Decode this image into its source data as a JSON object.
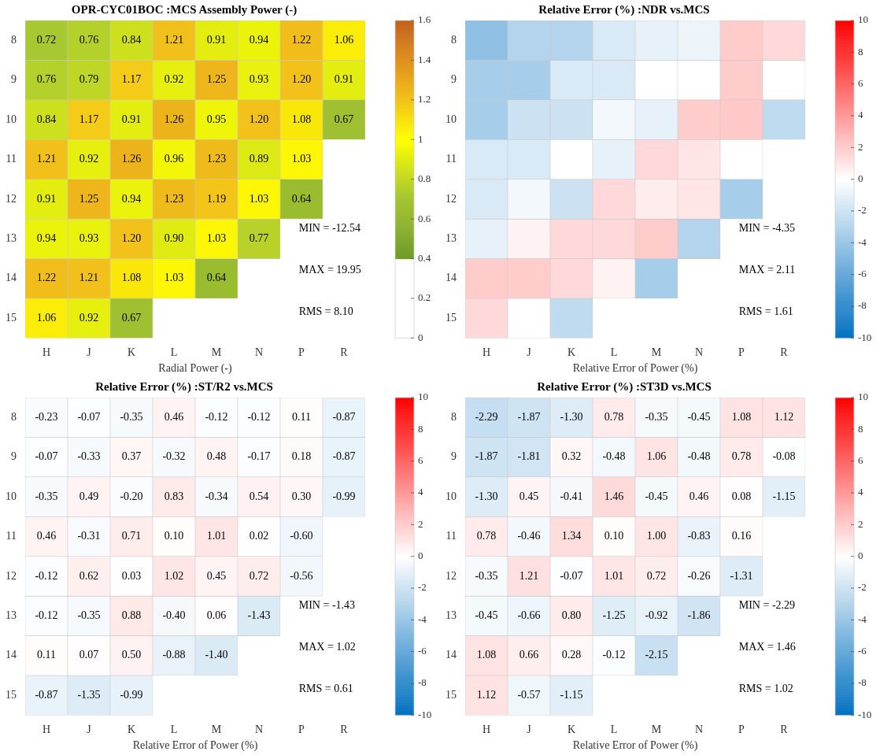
{
  "chart_data": [
    {
      "type": "heatmap",
      "title": "OPR-CYC01BOC :MCS Assembly Power (-)",
      "xlabel": "Radial Power (-)",
      "categories": [
        "H",
        "J",
        "K",
        "L",
        "M",
        "N",
        "P",
        "R"
      ],
      "y_categories": [
        "8",
        "9",
        "10",
        "11",
        "12",
        "13",
        "14",
        "15"
      ],
      "cells": [
        [
          0.72,
          0.76,
          0.84,
          1.21,
          0.91,
          0.94,
          1.22,
          1.06
        ],
        [
          0.76,
          0.79,
          1.17,
          0.92,
          1.25,
          0.93,
          1.2,
          0.91
        ],
        [
          0.84,
          1.17,
          0.91,
          1.26,
          0.95,
          1.2,
          1.08,
          0.67
        ],
        [
          1.21,
          0.92,
          1.26,
          0.96,
          1.23,
          0.89,
          1.03,
          null
        ],
        [
          0.91,
          1.25,
          0.94,
          1.23,
          1.19,
          1.03,
          0.64,
          null
        ],
        [
          0.94,
          0.93,
          1.2,
          0.9,
          1.03,
          0.77,
          null,
          null
        ],
        [
          1.22,
          1.21,
          1.08,
          1.03,
          0.64,
          null,
          null,
          null
        ],
        [
          1.06,
          0.92,
          0.67,
          null,
          null,
          null,
          null,
          null
        ]
      ],
      "cell_labels": [
        [
          "0.72",
          "0.76",
          "0.84",
          "1.21",
          "0.91",
          "0.94",
          "1.22",
          "1.06"
        ],
        [
          "0.76",
          "0.79",
          "1.17",
          "0.92",
          "1.25",
          "0.93",
          "1.20",
          "0.91"
        ],
        [
          "0.84",
          "1.17",
          "0.91",
          "1.26",
          "0.95",
          "1.20",
          "1.08",
          "0.67"
        ],
        [
          "1.21",
          "0.92",
          "1.26",
          "0.96",
          "1.23",
          "0.89",
          "1.03",
          null
        ],
        [
          "0.91",
          "1.25",
          "0.94",
          "1.23",
          "1.19",
          "1.03",
          "0.64",
          null
        ],
        [
          "0.94",
          "0.93",
          "1.20",
          "0.90",
          "1.03",
          "0.77",
          null,
          null
        ],
        [
          "1.22",
          "1.21",
          "1.08",
          "1.03",
          "0.64",
          null,
          null,
          null
        ],
        [
          "1.06",
          "0.92",
          "0.67",
          null,
          null,
          null,
          null,
          null
        ]
      ],
      "clim": [
        0,
        1.6
      ],
      "cticks": [
        0,
        0.2,
        0.4,
        0.6,
        0.8,
        1,
        1.2,
        1.4,
        1.6
      ],
      "annotations": [
        "MIN = -12.54",
        "MAX = 19.95",
        "RMS = 8.10"
      ]
    },
    {
      "type": "heatmap",
      "title": "Relative Error (%) :NDR vs.MCS",
      "xlabel": "Relative Error of Power (%)",
      "categories": [
        "H",
        "J",
        "K",
        "L",
        "M",
        "N",
        "P",
        "R"
      ],
      "y_categories": [
        "8",
        "9",
        "10",
        "11",
        "12",
        "13",
        "14",
        "15"
      ],
      "cells": [
        [
          -4.35,
          -3,
          -3,
          -1.5,
          -1,
          -0.7,
          2,
          1.5
        ],
        [
          -3.5,
          -3.5,
          -1.5,
          -1.5,
          0,
          0,
          2,
          0
        ],
        [
          -3.5,
          -2,
          -2,
          -0.5,
          -1,
          2,
          2.11,
          -2.5
        ],
        [
          -1.5,
          -1.5,
          0,
          -1,
          1.5,
          1,
          0,
          null
        ],
        [
          -1.5,
          -0.5,
          -2,
          1.5,
          0.7,
          1,
          -3.5,
          null
        ],
        [
          -1,
          0.5,
          1.5,
          1.5,
          2,
          -3,
          null,
          null
        ],
        [
          2,
          2,
          1.5,
          0.5,
          -3.5,
          null,
          null,
          null
        ],
        [
          1.5,
          0,
          -2.5,
          null,
          null,
          null,
          null,
          null
        ]
      ],
      "clim": [
        -10,
        10
      ],
      "cticks": [
        -10,
        -8,
        -6,
        -4,
        -2,
        0,
        2,
        4,
        6,
        8,
        10
      ],
      "annotations": [
        "MIN = -4.35",
        "MAX = 2.11",
        "RMS = 1.61"
      ]
    },
    {
      "type": "heatmap",
      "title": "Relative Error (%) :ST/R2 vs.MCS",
      "xlabel": "Relative Error of Power (%)",
      "categories": [
        "H",
        "J",
        "K",
        "L",
        "M",
        "N",
        "P",
        "R"
      ],
      "y_categories": [
        "8",
        "9",
        "10",
        "11",
        "12",
        "13",
        "14",
        "15"
      ],
      "cells": [
        [
          -0.23,
          -0.07,
          -0.35,
          0.46,
          -0.12,
          -0.12,
          0.11,
          -0.87
        ],
        [
          -0.07,
          -0.33,
          0.37,
          -0.32,
          0.48,
          -0.17,
          0.18,
          -0.87
        ],
        [
          -0.35,
          0.49,
          -0.2,
          0.83,
          -0.34,
          0.54,
          0.3,
          -0.99
        ],
        [
          0.46,
          -0.31,
          0.71,
          0.1,
          1.01,
          0.02,
          -0.6,
          null
        ],
        [
          -0.12,
          0.62,
          0.03,
          1.02,
          0.45,
          0.72,
          -0.56,
          null
        ],
        [
          -0.12,
          -0.35,
          0.88,
          -0.4,
          0.06,
          -1.43,
          null,
          null
        ],
        [
          0.11,
          0.07,
          0.5,
          -0.88,
          -1.4,
          null,
          null,
          null
        ],
        [
          -0.87,
          -1.35,
          -0.99,
          null,
          null,
          null,
          null,
          null
        ]
      ],
      "cell_labels": [
        [
          "-0.23",
          "-0.07",
          "-0.35",
          "0.46",
          "-0.12",
          "-0.12",
          "0.11",
          "-0.87"
        ],
        [
          "-0.07",
          "-0.33",
          "0.37",
          "-0.32",
          "0.48",
          "-0.17",
          "0.18",
          "-0.87"
        ],
        [
          "-0.35",
          "0.49",
          "-0.20",
          "0.83",
          "-0.34",
          "0.54",
          "0.30",
          "-0.99"
        ],
        [
          "0.46",
          "-0.31",
          "0.71",
          "0.10",
          "1.01",
          "0.02",
          "-0.60",
          null
        ],
        [
          "-0.12",
          "0.62",
          "0.03",
          "1.02",
          "0.45",
          "0.72",
          "-0.56",
          null
        ],
        [
          "-0.12",
          "-0.35",
          "0.88",
          "-0.40",
          "0.06",
          "-1.43",
          null,
          null
        ],
        [
          "0.11",
          "0.07",
          "0.50",
          "-0.88",
          "-1.40",
          null,
          null,
          null
        ],
        [
          "-0.87",
          "-1.35",
          "-0.99",
          null,
          null,
          null,
          null,
          null
        ]
      ],
      "clim": [
        -10,
        10
      ],
      "cticks": [
        -10,
        -8,
        -6,
        -4,
        -2,
        0,
        2,
        4,
        6,
        8,
        10
      ],
      "annotations": [
        "MIN = -1.43",
        "MAX = 1.02",
        "RMS = 0.61"
      ]
    },
    {
      "type": "heatmap",
      "title": "Relative Error (%) :ST3D vs.MCS",
      "xlabel": "Relative Error of Power (%)",
      "categories": [
        "H",
        "J",
        "K",
        "L",
        "M",
        "N",
        "P",
        "R"
      ],
      "y_categories": [
        "8",
        "9",
        "10",
        "11",
        "12",
        "13",
        "14",
        "15"
      ],
      "cells": [
        [
          -2.29,
          -1.87,
          -1.3,
          0.78,
          -0.35,
          -0.45,
          1.08,
          1.12
        ],
        [
          -1.87,
          -1.81,
          0.32,
          -0.48,
          1.06,
          -0.48,
          0.78,
          -0.08
        ],
        [
          -1.3,
          0.45,
          -0.41,
          1.46,
          -0.45,
          0.46,
          0.08,
          -1.15
        ],
        [
          0.78,
          -0.46,
          1.34,
          0.1,
          1,
          -0.83,
          0.16,
          null
        ],
        [
          -0.35,
          1.21,
          -0.07,
          1.01,
          0.72,
          -0.26,
          -1.31,
          null
        ],
        [
          -0.45,
          -0.66,
          0.8,
          -1.25,
          -0.92,
          -1.86,
          null,
          null
        ],
        [
          1.08,
          0.66,
          0.28,
          -0.12,
          -2.15,
          null,
          null,
          null
        ],
        [
          1.12,
          -0.57,
          -1.15,
          null,
          null,
          null,
          null,
          null
        ]
      ],
      "cell_labels": [
        [
          "-2.29",
          "-1.87",
          "-1.30",
          "0.78",
          "-0.35",
          "-0.45",
          "1.08",
          "1.12"
        ],
        [
          "-1.87",
          "-1.81",
          "0.32",
          "-0.48",
          "1.06",
          "-0.48",
          "0.78",
          "-0.08"
        ],
        [
          "-1.30",
          "0.45",
          "-0.41",
          "1.46",
          "-0.45",
          "0.46",
          "0.08",
          "-1.15"
        ],
        [
          "0.78",
          "-0.46",
          "1.34",
          "0.10",
          "1.00",
          "-0.83",
          "0.16",
          null
        ],
        [
          "-0.35",
          "1.21",
          "-0.07",
          "1.01",
          "0.72",
          "-0.26",
          "-1.31",
          null
        ],
        [
          "-0.45",
          "-0.66",
          "0.80",
          "-1.25",
          "-0.92",
          "-1.86",
          null,
          null
        ],
        [
          "1.08",
          "0.66",
          "0.28",
          "-0.12",
          "-2.15",
          null,
          null,
          null
        ],
        [
          "1.12",
          "-0.57",
          "-1.15",
          null,
          null,
          null,
          null,
          null
        ]
      ],
      "clim": [
        -10,
        10
      ],
      "cticks": [
        -10,
        -8,
        -6,
        -4,
        -2,
        0,
        2,
        4,
        6,
        8,
        10
      ],
      "annotations": [
        "MIN = -2.29",
        "MAX = 1.46",
        "RMS = 1.02"
      ]
    }
  ]
}
